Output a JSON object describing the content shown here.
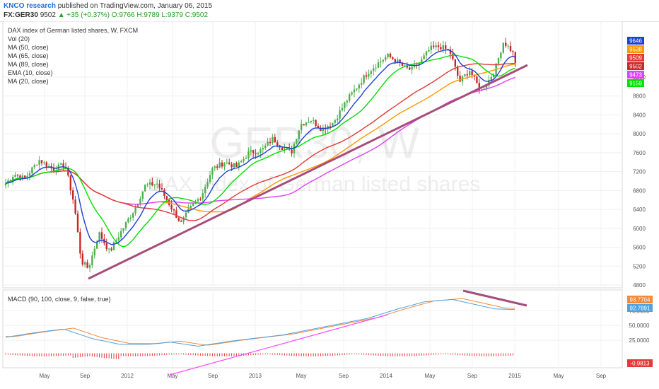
{
  "header": {
    "author": "KNCO research",
    "published": "published on TradingView.com, January 06, 2015",
    "symbol": "FX:GER30",
    "last": "9502",
    "change": "+35 (+0.37%)",
    "ohlc": "O:9766 H:9789 L:9379 C:9502"
  },
  "legend": {
    "title": "DAX index of German listed shares, W, FXCM",
    "items": [
      "Vol (20)",
      "MA (50, close)",
      "MA (65, close)",
      "MA (89, close)",
      "EMA (10, close)",
      "MA (20, close)"
    ]
  },
  "watermark": {
    "symbol": "GER30, W",
    "description": "DAX index of German listed shares"
  },
  "colors": {
    "up": "#4caf50",
    "down": "#c62828",
    "ma50": "#e53935",
    "ma65": "#ff9800",
    "ma89": "#e040fb",
    "ema10": "#1e40d6",
    "ma20": "#00e000",
    "trendline": "#a64d79",
    "macd": "#4fa3e0",
    "signal": "#f08a3c"
  },
  "price_axis": {
    "ticks": [
      "9200",
      "8800",
      "8400",
      "8000",
      "7600",
      "7200",
      "6800",
      "6400",
      "6000",
      "5600",
      "5200",
      "4800"
    ],
    "badges": [
      {
        "label": "9646",
        "color": "#1e40d6"
      },
      {
        "label": "9538",
        "color": "#ff9800"
      },
      {
        "label": "9509",
        "color": "#e53935"
      },
      {
        "label": "9502",
        "color": "#c62828"
      },
      {
        "label": "9473",
        "color": "#e040fb"
      },
      {
        "label": "9159",
        "color": "#00e000"
      }
    ]
  },
  "macd": {
    "legend": "MACD (90, 100, close, 9, false, true)",
    "ticks": [
      "75,0000",
      "50,0000",
      "25,0000"
    ],
    "badges": [
      {
        "label": "93.7704",
        "color": "#f08a3c"
      },
      {
        "label": "92.7891",
        "color": "#4fa3e0"
      },
      {
        "label": "-0.9813",
        "color": "#e53935"
      }
    ]
  },
  "time_axis": {
    "labels": [
      "May",
      "Sep",
      "2012",
      "May",
      "Sep",
      "2013",
      "May",
      "Sep",
      "2014",
      "May",
      "Sep",
      "2015",
      "May",
      "Sep"
    ]
  },
  "chart_data": {
    "type": "candlestick",
    "interval": "weekly",
    "ylim": [
      4800,
      9900
    ],
    "key_points": [
      {
        "date": "2011-03",
        "price": 7000
      },
      {
        "date": "2011-05",
        "price": 7500
      },
      {
        "date": "2011-09",
        "price": 5100
      },
      {
        "date": "2012-03",
        "price": 7000
      },
      {
        "date": "2012-06",
        "price": 6000
      },
      {
        "date": "2013-01",
        "price": 7700
      },
      {
        "date": "2013-05",
        "price": 8500
      },
      {
        "date": "2014-01",
        "price": 9600
      },
      {
        "date": "2014-06",
        "price": 10000
      },
      {
        "date": "2014-10",
        "price": 8400
      },
      {
        "date": "2014-12",
        "price": 10000
      },
      {
        "date": "2015-01",
        "price": 9502
      }
    ]
  }
}
